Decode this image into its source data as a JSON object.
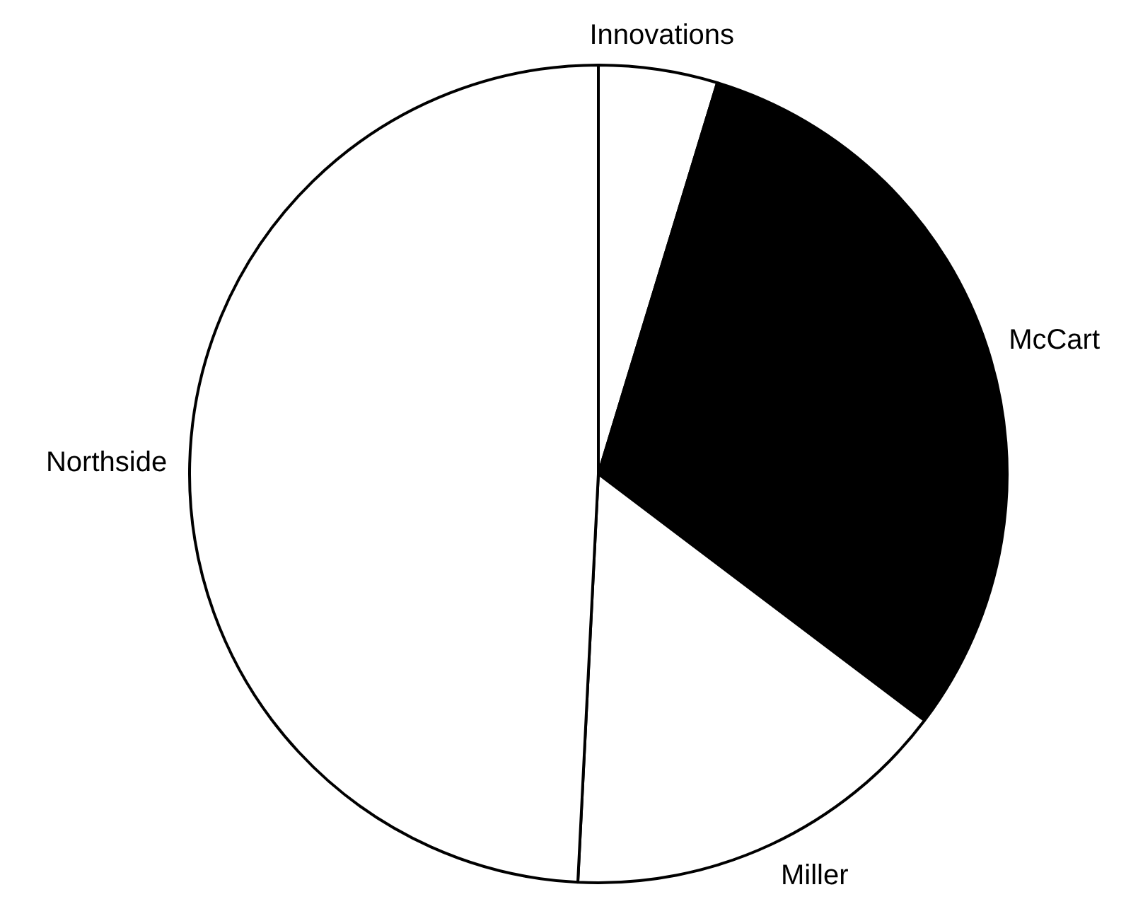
{
  "chart_data": {
    "type": "pie",
    "categories": [
      "Innovations",
      "McCart",
      "Miller",
      "Northside"
    ],
    "values": [
      4.7,
      30.6,
      15.5,
      49.2
    ],
    "colors": [
      "#ffffff",
      "#000000",
      "#ffffff",
      "#ffffff"
    ],
    "legend": false
  }
}
